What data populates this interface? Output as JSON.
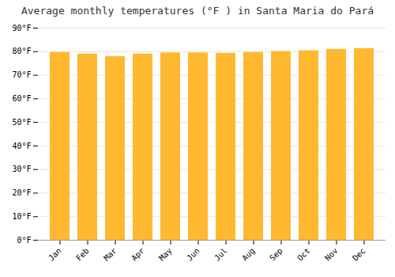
{
  "chart_data": {
    "type": "bar",
    "title": "Average monthly temperatures (°F ) in Santa Maria do Pará",
    "categories": [
      "Jan",
      "Feb",
      "Mar",
      "Apr",
      "May",
      "Jun",
      "Jul",
      "Aug",
      "Sep",
      "Oct",
      "Nov",
      "Dec"
    ],
    "values": [
      79.7,
      79.0,
      77.9,
      79.0,
      79.5,
      79.5,
      79.3,
      79.7,
      80.1,
      80.4,
      81.0,
      81.3
    ],
    "color": "#FFB830",
    "ylim": [
      0,
      90
    ],
    "yticks": [
      {
        "value": 0,
        "label": "0°F"
      },
      {
        "value": 10,
        "label": "10°F"
      },
      {
        "value": 20,
        "label": "20°F"
      },
      {
        "value": 30,
        "label": "30°F"
      },
      {
        "value": 40,
        "label": "40°F"
      },
      {
        "value": 50,
        "label": "50°F"
      },
      {
        "value": 60,
        "label": "60°F"
      },
      {
        "value": 70,
        "label": "70°F"
      },
      {
        "value": 80,
        "label": "80°F"
      },
      {
        "value": 90,
        "label": "90°F"
      }
    ],
    "grid": true
  }
}
